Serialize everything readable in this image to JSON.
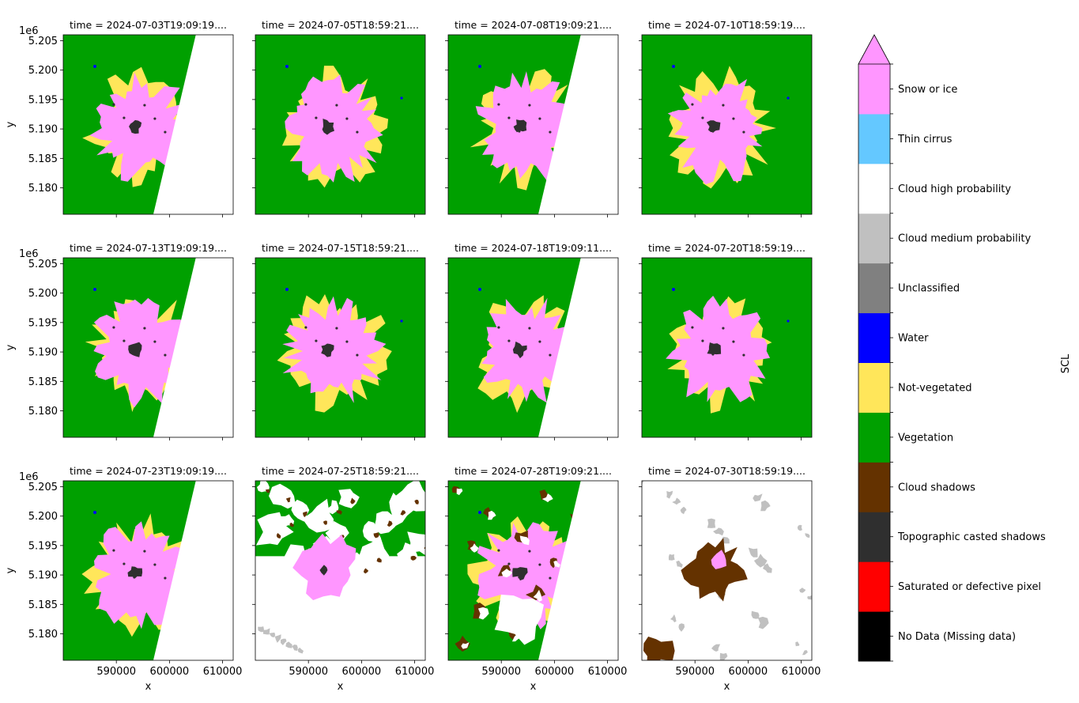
{
  "chart_data": {
    "type": "heatmap",
    "description_variable": "SCL",
    "xlabel": "x",
    "ylabel": "y",
    "xlim": [
      580000,
      612000
    ],
    "ylim": [
      5175500,
      5206000
    ],
    "y_offset_label": "1e6",
    "x_ticks": [
      590000,
      600000,
      610000
    ],
    "x_tick_labels": [
      "590000",
      "600000",
      "610000"
    ],
    "y_ticks": [
      5180000,
      5185000,
      5190000,
      5195000,
      5200000,
      5205000
    ],
    "y_tick_labels": [
      "5.180",
      "5.185",
      "5.190",
      "5.195",
      "5.200",
      "5.205"
    ],
    "panels": [
      {
        "title": "time = 2024-07-03T19:09:19....",
        "swath_edge": true,
        "cloudy": "none"
      },
      {
        "title": "time = 2024-07-05T18:59:21....",
        "swath_edge": false,
        "cloudy": "none"
      },
      {
        "title": "time = 2024-07-08T19:09:21....",
        "swath_edge": true,
        "cloudy": "none"
      },
      {
        "title": "time = 2024-07-10T18:59:19....",
        "swath_edge": false,
        "cloudy": "none"
      },
      {
        "title": "time = 2024-07-13T19:09:19....",
        "swath_edge": true,
        "cloudy": "none"
      },
      {
        "title": "time = 2024-07-15T18:59:21....",
        "swath_edge": false,
        "cloudy": "none"
      },
      {
        "title": "time = 2024-07-18T19:09:11....",
        "swath_edge": true,
        "cloudy": "none"
      },
      {
        "title": "time = 2024-07-20T18:59:19....",
        "swath_edge": false,
        "cloudy": "none"
      },
      {
        "title": "time = 2024-07-23T19:09:19....",
        "swath_edge": true,
        "cloudy": "none"
      },
      {
        "title": "time = 2024-07-25T18:59:21....",
        "swath_edge": false,
        "cloudy": "partial"
      },
      {
        "title": "time = 2024-07-28T19:09:21....",
        "swath_edge": true,
        "cloudy": "some"
      },
      {
        "title": "time = 2024-07-30T18:59:19....",
        "swath_edge": false,
        "cloudy": "full"
      }
    ],
    "colorbar": {
      "label": "SCL",
      "extend": "max",
      "classes": [
        {
          "label": "No Data (Missing data)",
          "color": "#000000"
        },
        {
          "label": "Saturated or defective pixel",
          "color": "#ff0000"
        },
        {
          "label": "Topographic casted shadows",
          "color": "#2f2f2f"
        },
        {
          "label": "Cloud shadows",
          "color": "#643200"
        },
        {
          "label": "Vegetation",
          "color": "#00a000"
        },
        {
          "label": "Not-vegetated",
          "color": "#ffe65a"
        },
        {
          "label": "Water",
          "color": "#0000ff"
        },
        {
          "label": "Unclassified",
          "color": "#808080"
        },
        {
          "label": "Cloud medium probability",
          "color": "#c0c0c0"
        },
        {
          "label": "Cloud high probability",
          "color": "#ffffff"
        },
        {
          "label": "Thin cirrus",
          "color": "#64c8ff"
        },
        {
          "label": "Snow or ice",
          "color": "#ff96ff"
        }
      ]
    }
  }
}
